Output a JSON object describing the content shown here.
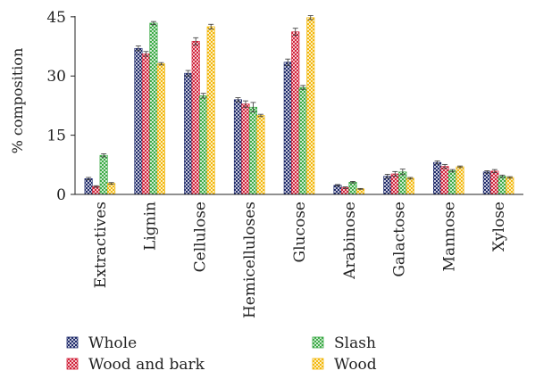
{
  "chart_data": {
    "type": "bar",
    "ylabel": "% composition",
    "xlabel": "",
    "ylim": [
      0,
      47
    ],
    "yticks": [
      0,
      15,
      30,
      45
    ],
    "categories": [
      "Extractives",
      "Lignin",
      "Cellulose",
      "Hemicelluloses",
      "Glucose",
      "Arabinose",
      "Galactose",
      "Mannose",
      "Xylose"
    ],
    "series": [
      {
        "name": "Whole",
        "color": "#1f2a6b",
        "values": [
          4.0,
          37.0,
          30.7,
          24.0,
          33.5,
          2.3,
          4.6,
          8.1,
          5.7
        ],
        "errors": [
          0.3,
          0.6,
          0.7,
          0.5,
          0.8,
          0.2,
          0.5,
          0.4,
          0.3
        ]
      },
      {
        "name": "Wood and bark",
        "color": "#d1223a",
        "values": [
          2.0,
          35.6,
          38.8,
          22.9,
          41.2,
          1.7,
          5.2,
          7.1,
          5.9
        ],
        "errors": [
          0.2,
          0.6,
          0.9,
          0.8,
          0.9,
          0.2,
          0.6,
          0.5,
          0.4
        ]
      },
      {
        "name": "Slash",
        "color": "#3dab47",
        "values": [
          9.9,
          43.4,
          25.0,
          22.1,
          27.1,
          3.1,
          5.7,
          6.0,
          4.6
        ],
        "errors": [
          0.4,
          0.4,
          0.6,
          1.2,
          0.5,
          0.2,
          0.7,
          0.3,
          0.3
        ]
      },
      {
        "name": "Wood",
        "color": "#f2b90f",
        "values": [
          2.8,
          33.1,
          42.5,
          20.0,
          44.8,
          1.4,
          4.1,
          7.0,
          4.3
        ],
        "errors": [
          0.2,
          0.3,
          0.6,
          0.3,
          0.5,
          0.1,
          0.2,
          0.2,
          0.2
        ]
      }
    ],
    "grid": false,
    "legend_position": "bottom"
  }
}
